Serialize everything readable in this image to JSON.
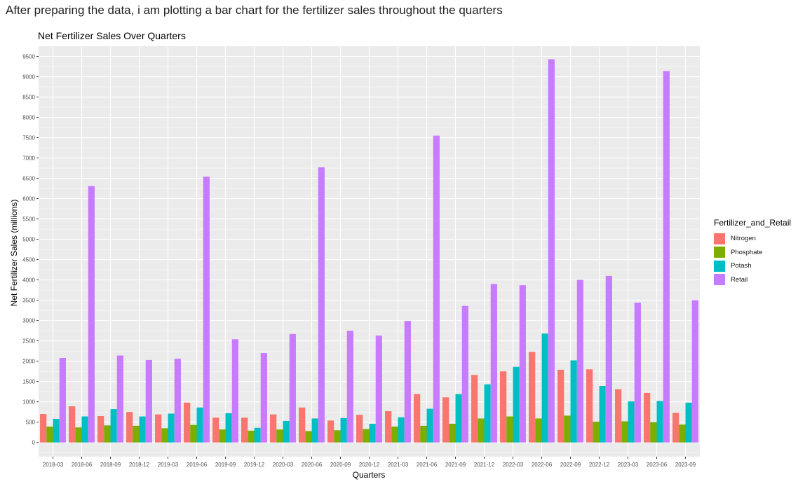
{
  "intro_text": "After preparing the data, i am plotting a bar chart for the fertilizer sales throughout the quarters",
  "chart_data": {
    "type": "bar",
    "title": "Net Fertilizer Sales Over Quarters",
    "xlabel": "Quarters",
    "ylabel": "Net Fertilizer Sales (millions)",
    "ylim": [
      -350,
      9750
    ],
    "yticks": [
      0,
      500,
      1000,
      1500,
      2000,
      2500,
      3000,
      3500,
      4000,
      4500,
      5000,
      5500,
      6000,
      6500,
      7000,
      7500,
      8000,
      8500,
      9000,
      9500
    ],
    "grid": true,
    "legend_position": "right",
    "legend_title": "Fertilizer_and_Retail",
    "categories": [
      "2018-03",
      "2018-06",
      "2018-09",
      "2018-12",
      "2019-03",
      "2019-06",
      "2019-09",
      "2019-12",
      "2020-03",
      "2020-06",
      "2020-09",
      "2020-12",
      "2021-03",
      "2021-06",
      "2021-09",
      "2021-12",
      "2022-03",
      "2022-06",
      "2022-09",
      "2022-12",
      "2023-03",
      "2023-06",
      "2023-09"
    ],
    "series": [
      {
        "name": "Nitrogen",
        "color": "#F8766D",
        "values": [
          700,
          890,
          650,
          750,
          690,
          980,
          610,
          610,
          690,
          860,
          540,
          680,
          770,
          1190,
          1110,
          1660,
          1750,
          2230,
          1790,
          1800,
          1310,
          1220,
          730
        ]
      },
      {
        "name": "Phosphate",
        "color": "#7CAE00",
        "values": [
          390,
          370,
          420,
          410,
          350,
          430,
          320,
          290,
          320,
          280,
          300,
          330,
          390,
          410,
          460,
          590,
          640,
          590,
          660,
          510,
          520,
          500,
          440
        ]
      },
      {
        "name": "Potash",
        "color": "#00BFC4",
        "values": [
          580,
          640,
          820,
          640,
          710,
          860,
          720,
          360,
          530,
          590,
          600,
          460,
          620,
          830,
          1190,
          1430,
          1860,
          2680,
          2020,
          1390,
          1010,
          1020,
          980
        ]
      },
      {
        "name": "Retail",
        "color": "#C77CFF",
        "values": [
          2080,
          6310,
          2140,
          2030,
          2060,
          6540,
          2540,
          2200,
          2670,
          6770,
          2750,
          2630,
          2990,
          7550,
          3360,
          3900,
          3870,
          9430,
          4000,
          4100,
          3440,
          9140,
          3500
        ]
      }
    ]
  }
}
